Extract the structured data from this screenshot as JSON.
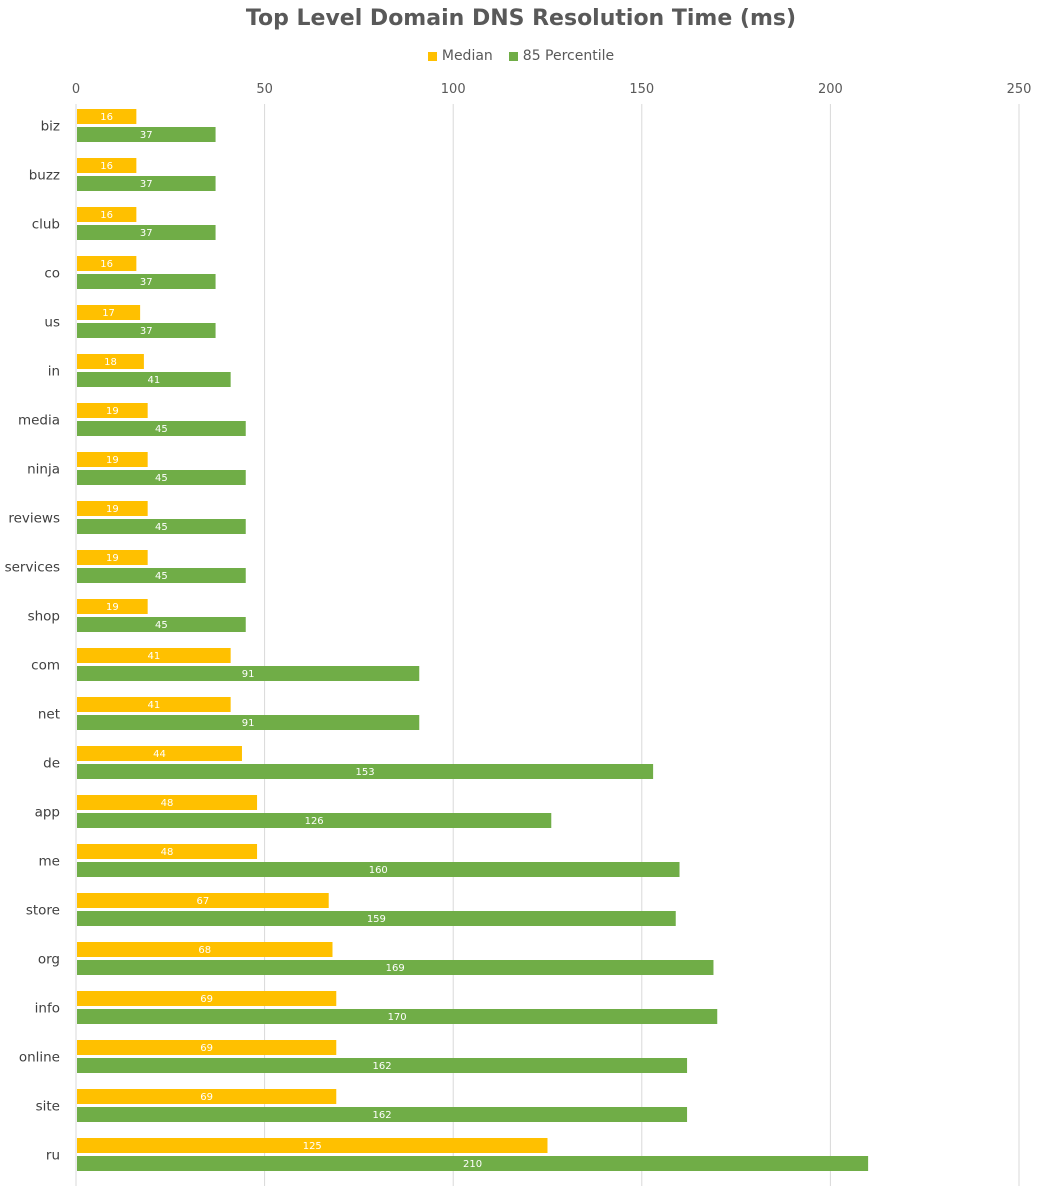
{
  "chart_data": {
    "type": "bar",
    "orientation": "horizontal",
    "title": "Top Level Domain DNS Resolution Time (ms)",
    "xlabel": "",
    "ylabel": "",
    "xlim": [
      0,
      250
    ],
    "x_ticks": [
      0,
      50,
      100,
      150,
      200,
      250
    ],
    "grid": true,
    "legend_position": "top",
    "data_labels": true,
    "categories": [
      "biz",
      "buzz",
      "club",
      "co",
      "us",
      "in",
      "media",
      "ninja",
      "reviews",
      "services",
      "shop",
      "com",
      "net",
      "de",
      "app",
      "me",
      "store",
      "org",
      "info",
      "online",
      "site",
      "ru"
    ],
    "series": [
      {
        "name": "Median",
        "color": "#FFC000",
        "values": [
          16,
          16,
          16,
          16,
          17,
          18,
          19,
          19,
          19,
          19,
          19,
          41,
          41,
          44,
          48,
          48,
          67,
          68,
          69,
          69,
          69,
          125
        ]
      },
      {
        "name": "85 Percentile",
        "color": "#70AD47",
        "values": [
          37,
          37,
          37,
          37,
          37,
          41,
          45,
          45,
          45,
          45,
          45,
          91,
          91,
          153,
          126,
          160,
          159,
          169,
          170,
          162,
          162,
          210
        ]
      }
    ]
  }
}
